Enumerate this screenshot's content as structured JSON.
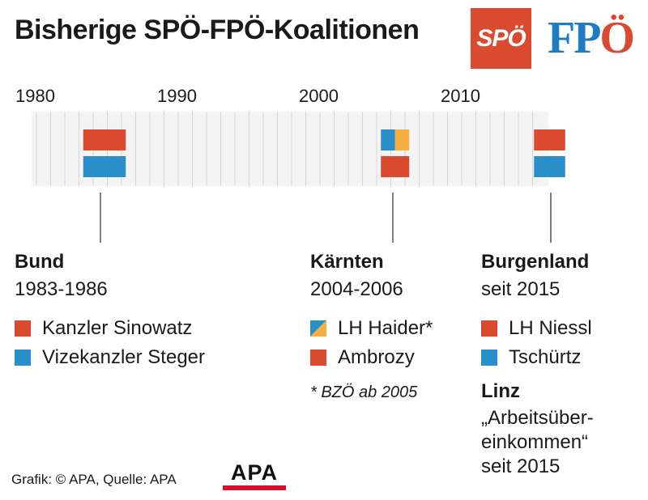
{
  "title": "Bisherige SPÖ-FPÖ-Koalitionen",
  "logos": {
    "spoe": "SPÖ",
    "fpoe_fp": "FP",
    "fpoe_o": "Ö"
  },
  "colors": {
    "spoe_red": "#d94a2f",
    "fpoe_blue": "#2a8ec9",
    "bzoe_orange": "#f5b041",
    "band": "#f4f4f4",
    "gridline": "#d6d6d6",
    "connector": "#555555"
  },
  "chart_data": {
    "type": "timeline",
    "title": "Bisherige SPÖ-FPÖ-Koalitionen",
    "x_range": [
      1980,
      2015.8
    ],
    "ticks": [
      1980,
      1990,
      2000,
      2010
    ],
    "gridlines_every_year": true,
    "coalitions": [
      {
        "name": "Bund",
        "period": "1983-1986",
        "start": 1983.3,
        "end": 1986.3,
        "top": [
          {
            "party": "SPÖ",
            "color": "#d94a2f"
          }
        ],
        "bottom": [
          {
            "party": "FPÖ",
            "color": "#2a8ec9"
          }
        ],
        "legend": [
          {
            "swatch": "red",
            "label": "Kanzler Sinowatz"
          },
          {
            "swatch": "blue",
            "label": "Vizekanzler Steger"
          }
        ]
      },
      {
        "name": "Kärnten",
        "period": "2004-2006",
        "start": 2004.3,
        "end": 2006.3,
        "split_year": 2005.3,
        "top": [
          {
            "party": "FPÖ",
            "color": "#2a8ec9",
            "until": 2005.3
          },
          {
            "party": "BZÖ",
            "color": "#f5b041",
            "from": 2005.3
          }
        ],
        "bottom": [
          {
            "party": "SPÖ",
            "color": "#d94a2f"
          }
        ],
        "legend": [
          {
            "swatch": "blue-orange",
            "label": "LH Haider*"
          },
          {
            "swatch": "red",
            "label": "Ambrozy"
          }
        ],
        "note": "* BZÖ ab 2005"
      },
      {
        "name": "Burgenland",
        "period": "seit 2015",
        "start": 2015.1,
        "end": 2017.3,
        "top": [
          {
            "party": "SPÖ",
            "color": "#d94a2f"
          }
        ],
        "bottom": [
          {
            "party": "FPÖ",
            "color": "#2a8ec9"
          }
        ],
        "legend": [
          {
            "swatch": "red",
            "label": "LH Niessl"
          },
          {
            "swatch": "blue",
            "label": "Tschürtz"
          }
        ]
      }
    ]
  },
  "linz": {
    "title": "Linz",
    "lines": [
      "„Arbeitsüber-",
      "einkommen“",
      "seit 2015"
    ]
  },
  "footer": {
    "source": "Grafik: © APA, Quelle: APA",
    "apa_logo": "APA"
  }
}
